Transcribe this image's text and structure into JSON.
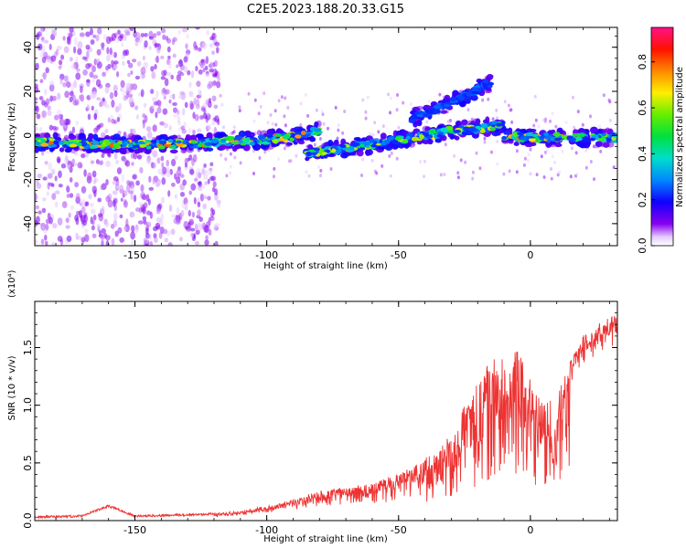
{
  "title": "C2E5.2023.188.20.33.G15",
  "chart_data": [
    {
      "type": "heatmap",
      "xlabel": "Height of straight line (km)",
      "ylabel": "Frequency (Hz)",
      "xlim": [
        -188,
        33
      ],
      "ylim": [
        -50,
        49
      ],
      "xticks": [
        -150,
        -100,
        -50,
        0
      ],
      "yticks": [
        -40,
        -20,
        0,
        20,
        40
      ],
      "colorbar": {
        "label": "Normalized spectral amplitude",
        "range": [
          0.0,
          0.95
        ],
        "ticks": [
          0.0,
          0.2,
          0.4,
          0.6,
          0.8
        ],
        "colormap": "rainbow (white-violet-blue-cyan-green-yellow-orange-red-magenta)"
      },
      "ridges": [
        {
          "x": [
            -188,
            -160,
            -140,
            -120,
            -100,
            -88,
            -80
          ],
          "freq": [
            -3,
            -4,
            -4,
            -3,
            -2,
            0,
            2
          ],
          "peak_amplitude": 0.85
        },
        {
          "x": [
            -85,
            -70,
            -60,
            -50,
            -40,
            -30,
            -20,
            -10
          ],
          "freq": [
            -8,
            -6,
            -4,
            -2,
            0,
            2,
            3,
            5
          ],
          "peak_amplitude": 0.7
        },
        {
          "x": [
            -10,
            0,
            10,
            20,
            33
          ],
          "freq": [
            0,
            -1,
            -1,
            -1,
            -1
          ],
          "peak_amplitude": 0.85
        },
        {
          "x": [
            -45,
            -35,
            -25,
            -15
          ],
          "freq": [
            8,
            12,
            18,
            24
          ],
          "peak_amplitude": 0.3
        }
      ]
    },
    {
      "type": "line",
      "xlabel": "Height of straight line (km)",
      "ylabel": "SNR (10 * v/v)",
      "yscale_note": "(x10⁴)",
      "xlim": [
        -188,
        33
      ],
      "ylim": [
        0,
        1.9
      ],
      "xticks": [
        -150,
        -100,
        -50,
        0
      ],
      "yticks": [
        0.0,
        0.5,
        1.0,
        1.5
      ],
      "color": "#ee3333",
      "series": [
        {
          "x": [
            -188,
            -170,
            -160,
            -150,
            -130,
            -120,
            -110,
            -100,
            -90,
            -80,
            -70,
            -60,
            -50,
            -40,
            -35,
            -30,
            -25,
            -20,
            -15,
            -10,
            -5,
            0,
            5,
            10,
            15,
            20,
            25,
            33
          ],
          "y": [
            0.03,
            0.04,
            0.13,
            0.04,
            0.05,
            0.06,
            0.08,
            0.12,
            0.18,
            0.25,
            0.3,
            0.32,
            0.4,
            0.55,
            0.6,
            0.75,
            1.0,
            1.2,
            1.4,
            1.45,
            1.5,
            1.3,
            1.0,
            1.1,
            1.4,
            1.6,
            1.7,
            1.8
          ]
        }
      ]
    }
  ]
}
